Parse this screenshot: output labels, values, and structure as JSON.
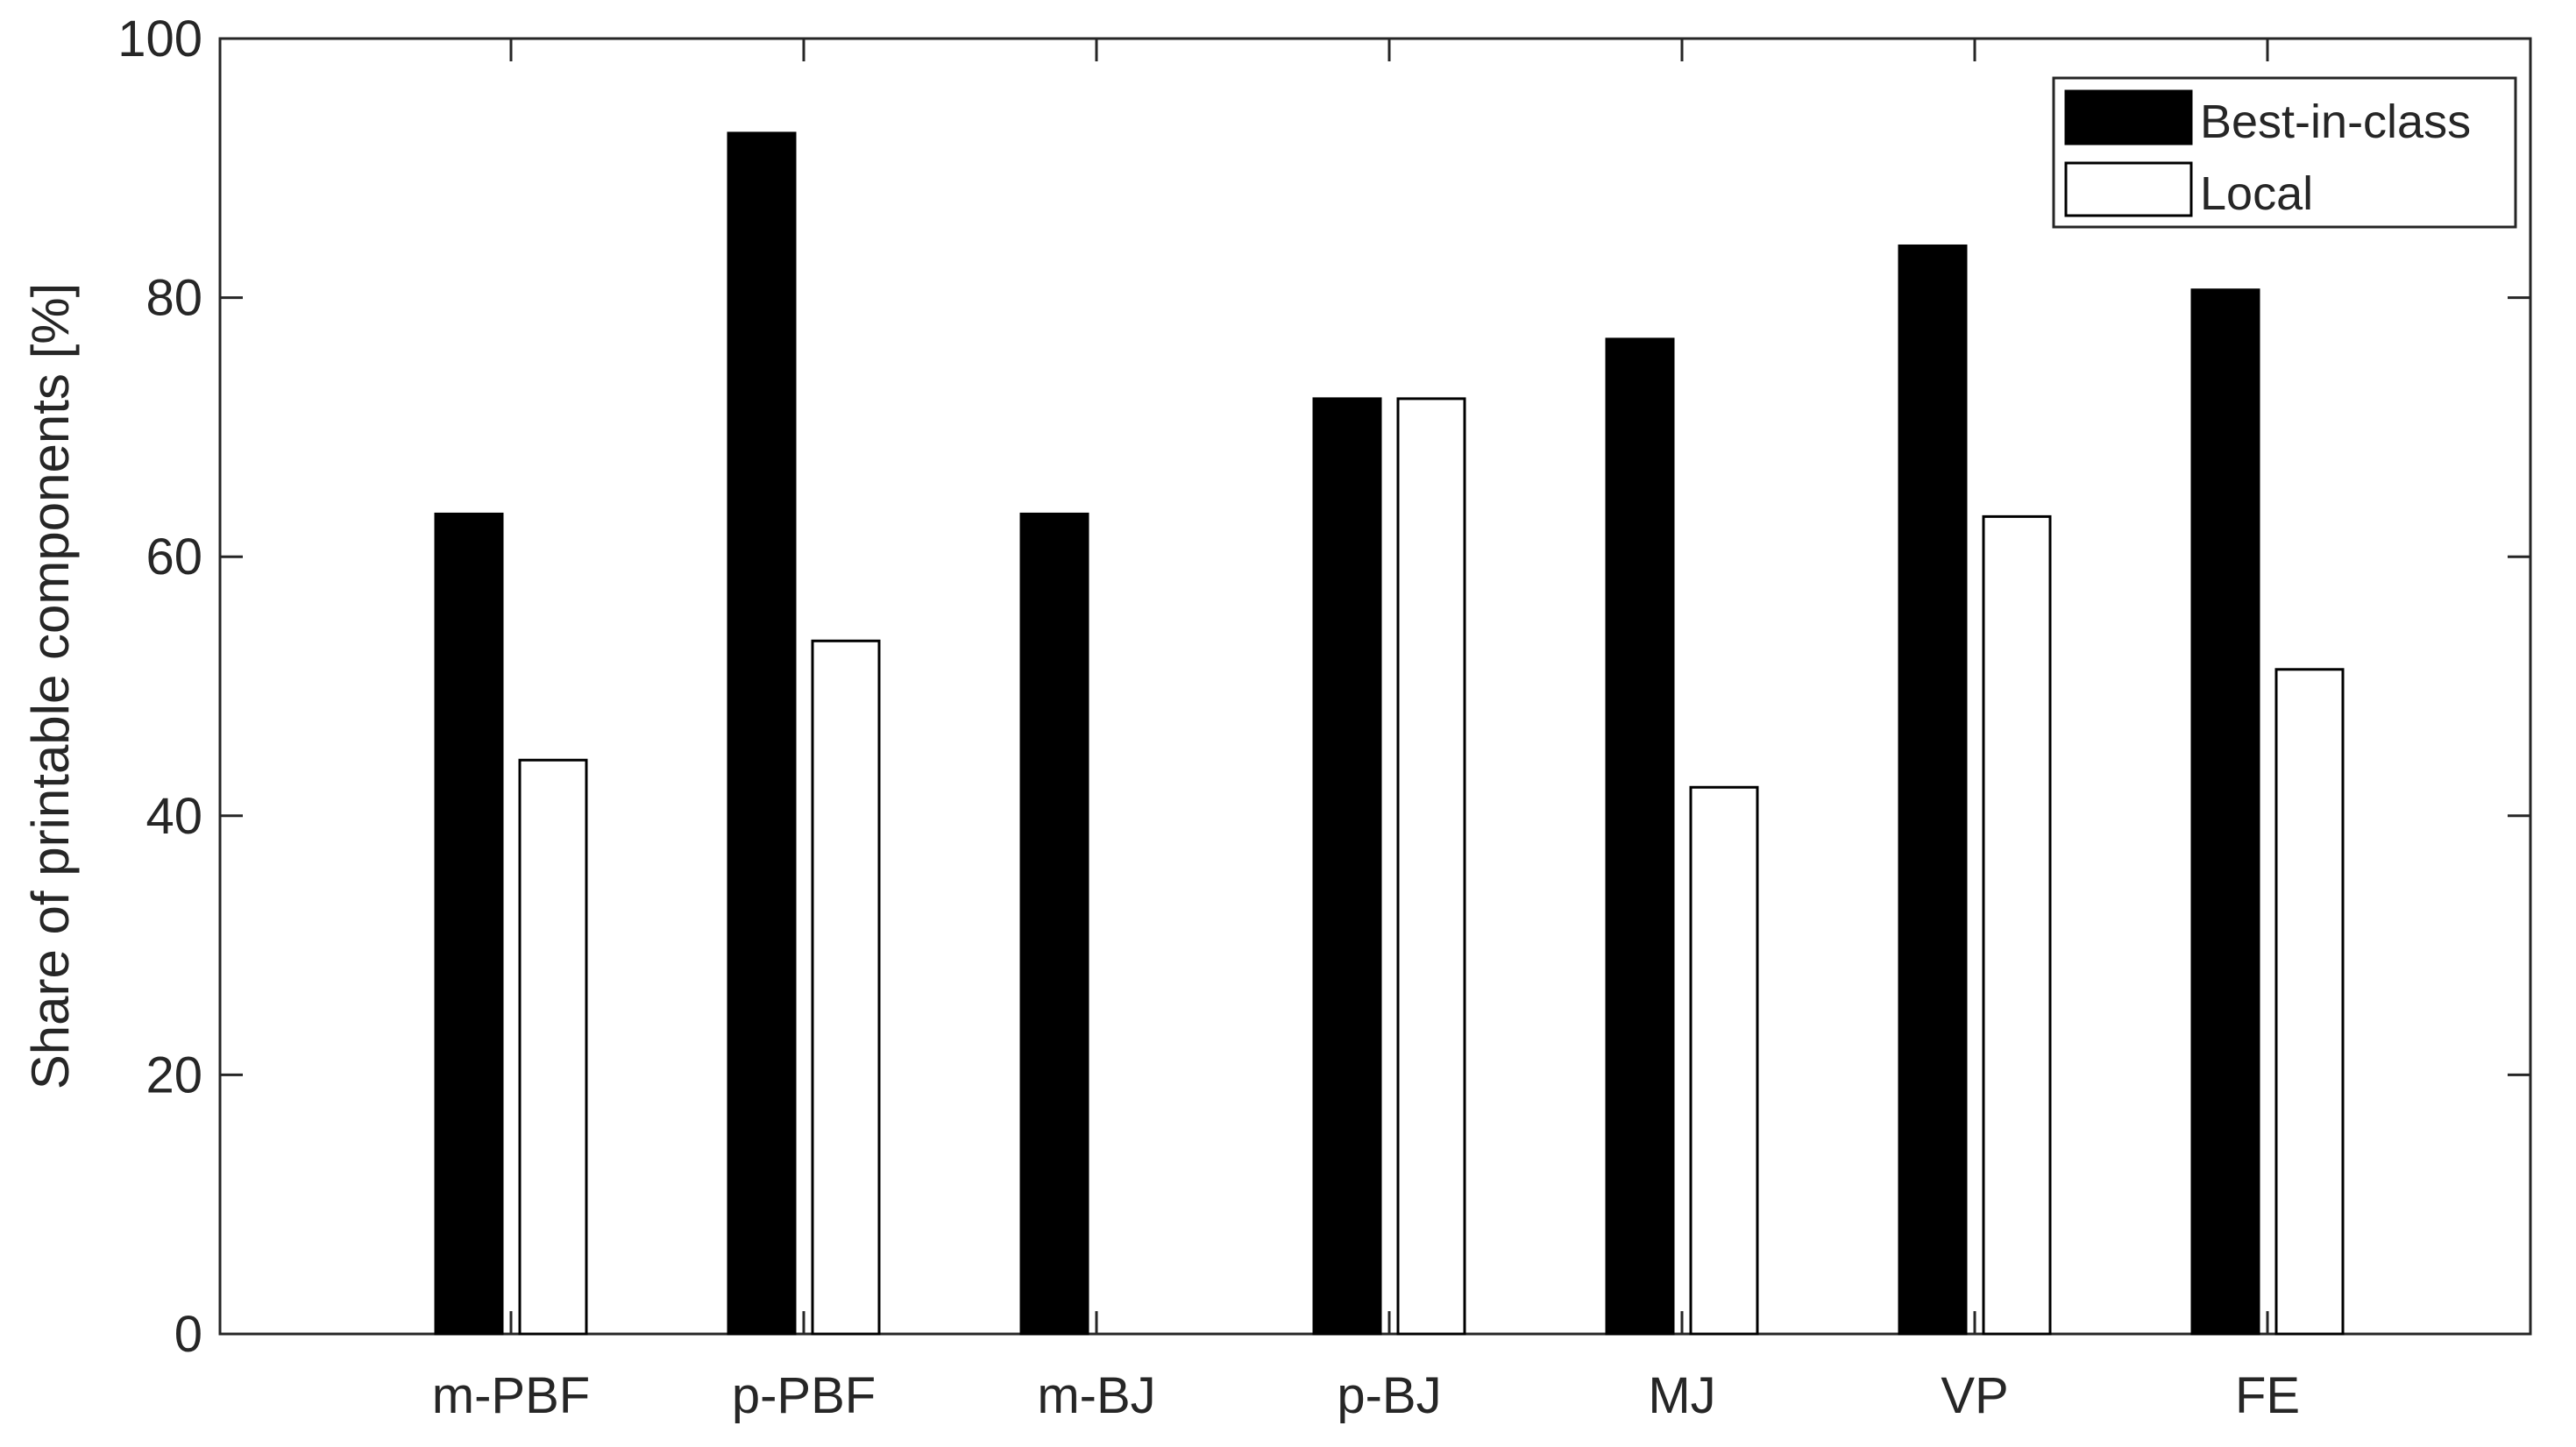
{
  "chart_data": {
    "type": "bar",
    "categories": [
      "m-PBF",
      "p-PBF",
      "m-BJ",
      "p-BJ",
      "MJ",
      "VP",
      "FE"
    ],
    "series": [
      {
        "name": "Best-in-class",
        "values": [
          63.3,
          92.7,
          63.3,
          72.2,
          76.8,
          84.0,
          80.6
        ],
        "color": "#000000"
      },
      {
        "name": "Local",
        "values": [
          44.3,
          53.5,
          0,
          72.2,
          42.2,
          63.1,
          51.3
        ],
        "color": "#ffffff"
      }
    ],
    "xlabel": "",
    "ylabel": "Share of printable components [%]",
    "ylim": [
      0,
      100
    ],
    "yticks": [
      0,
      20,
      40,
      60,
      80,
      100
    ],
    "grid": false,
    "legend": "top-right"
  }
}
